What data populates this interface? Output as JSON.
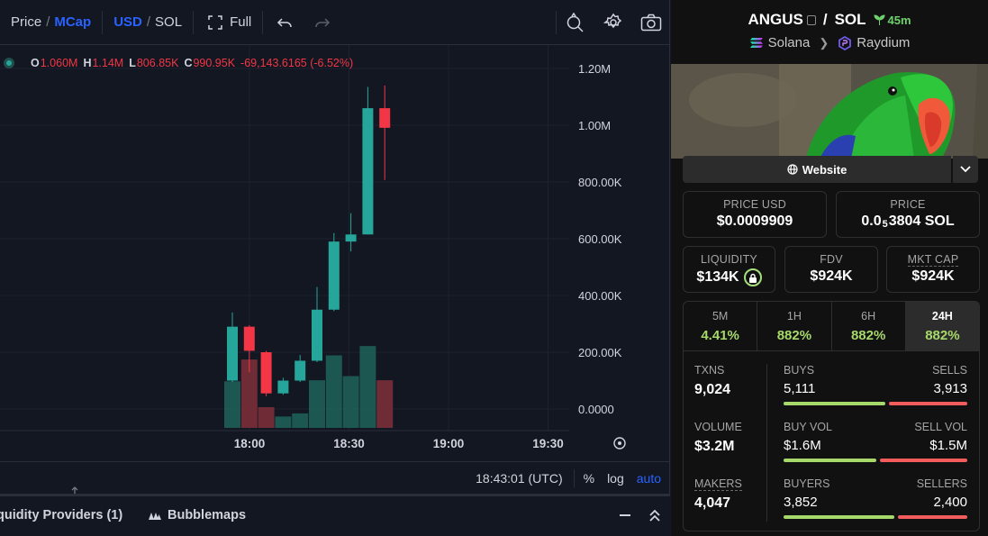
{
  "toolbar": {
    "price_label": "Price",
    "mcap_label": "MCap",
    "usd_label": "USD",
    "sol_label": "SOL",
    "full_label": "Full"
  },
  "legend": {
    "o_label": "O",
    "o_value": "1.060M",
    "h_label": "H",
    "h_value": "1.14M",
    "l_label": "L",
    "l_value": "806.85K",
    "c_label": "C",
    "c_value": "990.95K",
    "change": "-69,143.6165 (-6.52%)"
  },
  "chart_data": {
    "type": "candlestick",
    "x_ticks": [
      "18:00",
      "18:30",
      "19:00",
      "19:30"
    ],
    "y_ticks": [
      "1.20M",
      "1.00M",
      "800.00K",
      "600.00K",
      "400.00K",
      "200.00K",
      "0.0000"
    ],
    "ylim": [
      0,
      1200000
    ],
    "grid": true,
    "candles": [
      {
        "o": 100000,
        "h": 340000,
        "l": 95000,
        "c": 290000,
        "vol": 0.45
      },
      {
        "o": 290000,
        "h": 295000,
        "l": 130000,
        "c": 205000,
        "vol": 0.66
      },
      {
        "o": 200000,
        "h": 205000,
        "l": 45000,
        "c": 55000,
        "vol": 0.2
      },
      {
        "o": 55000,
        "h": 110000,
        "l": 50000,
        "c": 100000,
        "vol": 0.11
      },
      {
        "o": 100000,
        "h": 190000,
        "l": 95000,
        "c": 170000,
        "vol": 0.14
      },
      {
        "o": 170000,
        "h": 430000,
        "l": 165000,
        "c": 350000,
        "vol": 0.46
      },
      {
        "o": 350000,
        "h": 620000,
        "l": 345000,
        "c": 590000,
        "vol": 0.7
      },
      {
        "o": 590000,
        "h": 690000,
        "l": 555000,
        "c": 615000,
        "vol": 0.5
      },
      {
        "o": 615000,
        "h": 1135000,
        "l": 615000,
        "c": 1060000,
        "vol": 0.79
      },
      {
        "o": 1060000,
        "h": 1140000,
        "l": 806850,
        "c": 990950,
        "vol": 0.46
      }
    ]
  },
  "status": {
    "time": "18:43:01 (UTC)",
    "percent_label": "%",
    "log_label": "log",
    "auto_label": "auto"
  },
  "bottom_tabs": {
    "liquidity_label": "quidity Providers (1)",
    "bubblemaps_label": "Bubblemaps"
  },
  "pair": {
    "base": "ANGUS",
    "slash": "/",
    "quote": "SOL",
    "age": "45m",
    "chain": "Solana",
    "dex": "Raydium",
    "website_label": "Website"
  },
  "colors": {
    "up": "#26a69a",
    "down": "#f23645",
    "accent": "#2962ff",
    "positive": "#a6d96a"
  },
  "metrics": {
    "price_usd_label": "PRICE USD",
    "price_usd_value": "$0.0009909",
    "price_label": "PRICE",
    "price_value_prefix": "0.0",
    "price_value_sub": "5",
    "price_value_suffix": "3804 SOL",
    "liquidity_label": "LIQUIDITY",
    "liquidity_value": "$134K",
    "fdv_label": "FDV",
    "fdv_value": "$924K",
    "mktcap_label": "MKT CAP",
    "mktcap_value": "$924K"
  },
  "timeframes": [
    {
      "label": "5M",
      "value": "4.41%"
    },
    {
      "label": "1H",
      "value": "882%"
    },
    {
      "label": "6H",
      "value": "882%"
    },
    {
      "label": "24H",
      "value": "882%"
    }
  ],
  "stats": {
    "txns_label": "TXNS",
    "txns_value": "9,024",
    "volume_label": "VOLUME",
    "volume_value": "$3.2M",
    "makers_label": "MAKERS",
    "makers_value": "4,047",
    "buys_label": "BUYS",
    "buys_value": "5,111",
    "sells_label": "SELLS",
    "sells_value": "3,913",
    "buy_share": 0.566,
    "buyvol_label": "BUY VOL",
    "buyvol_value": "$1.6M",
    "sellvol_label": "SELL VOL",
    "sellvol_value": "$1.5M",
    "buyvol_share": 0.516,
    "buyers_label": "BUYERS",
    "buyers_value": "3,852",
    "sellers_label": "SELLERS",
    "sellers_value": "2,400",
    "buyers_share": 0.616
  }
}
